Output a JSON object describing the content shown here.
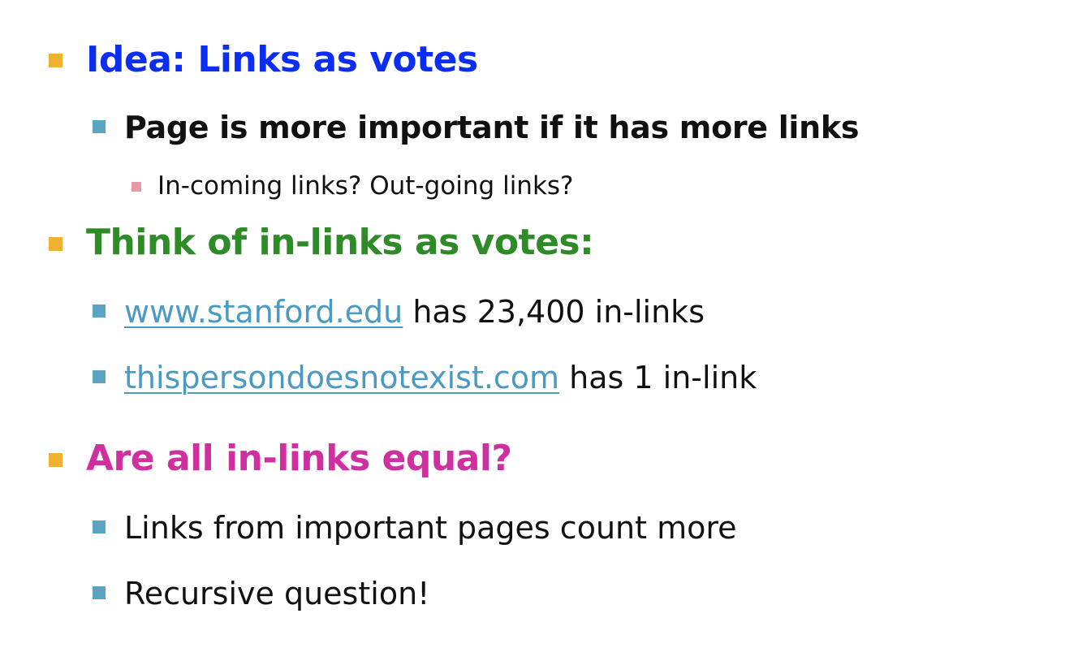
{
  "slide": {
    "section1": {
      "heading": "Idea: Links as votes",
      "point": "Page is more important if it has more links",
      "subpoint": "In-coming links? Out-going links?"
    },
    "section2": {
      "heading": "Think of in-links as votes:",
      "examples": [
        {
          "link": "www.stanford.edu",
          "text": " has 23,400 in-links"
        },
        {
          "link": "thispersondoesnotexist.com",
          "text": " has 1 in-link"
        }
      ]
    },
    "section3": {
      "heading": "Are all in-links equal?",
      "points": [
        "Links from important pages count more",
        "Recursive question!"
      ]
    }
  },
  "colors": {
    "heading1": "#0b2ef2",
    "heading2": "#2f8a28",
    "heading3": "#d0309f",
    "link": "#4a9ac3",
    "bullet_level1": "#f0b131",
    "bullet_level2": "#5aa6c2",
    "bullet_level3": "#e79aa3"
  }
}
